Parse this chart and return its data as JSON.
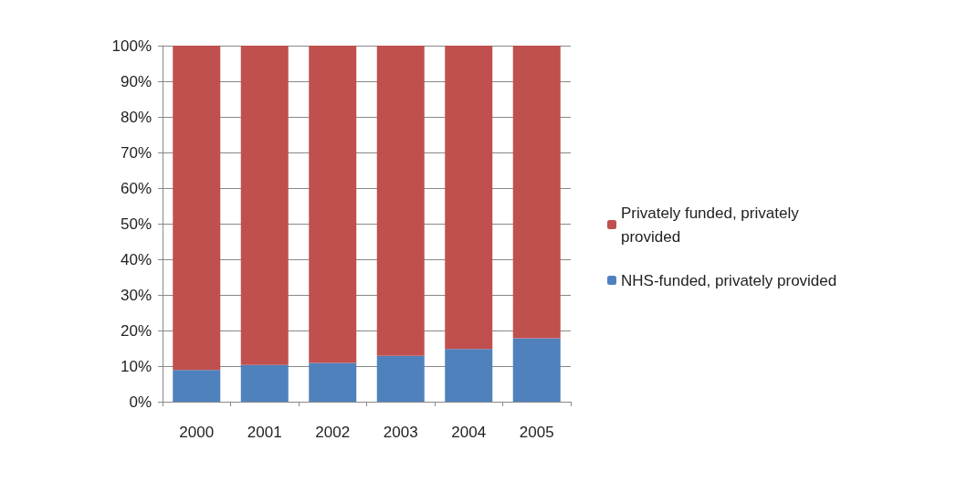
{
  "chart_data": {
    "type": "bar",
    "stacked": true,
    "categories": [
      "2000",
      "2001",
      "2002",
      "2003",
      "2004",
      "2005"
    ],
    "series": [
      {
        "name": "NHS-funded, privately provided",
        "color": "#4f81bd",
        "values": [
          8.9,
          10.3,
          10.9,
          12.9,
          14.8,
          17.8
        ]
      },
      {
        "name": "Privately funded, privately provided",
        "color": "#c0504d",
        "values": [
          91.1,
          89.7,
          89.1,
          87.1,
          85.2,
          82.2
        ]
      }
    ],
    "ylim": [
      0,
      100
    ],
    "yticks": [
      {
        "value": 0,
        "label": "0%"
      },
      {
        "value": 10,
        "label": "10%"
      },
      {
        "value": 20,
        "label": "20%"
      },
      {
        "value": 30,
        "label": "30%"
      },
      {
        "value": 40,
        "label": "40%"
      },
      {
        "value": 50,
        "label": "50%"
      },
      {
        "value": 60,
        "label": "60%"
      },
      {
        "value": 70,
        "label": "70%"
      },
      {
        "value": 80,
        "label": "80%"
      },
      {
        "value": 90,
        "label": "90%"
      },
      {
        "value": 100,
        "label": "100%"
      }
    ],
    "grid": "y",
    "legend": "right"
  }
}
